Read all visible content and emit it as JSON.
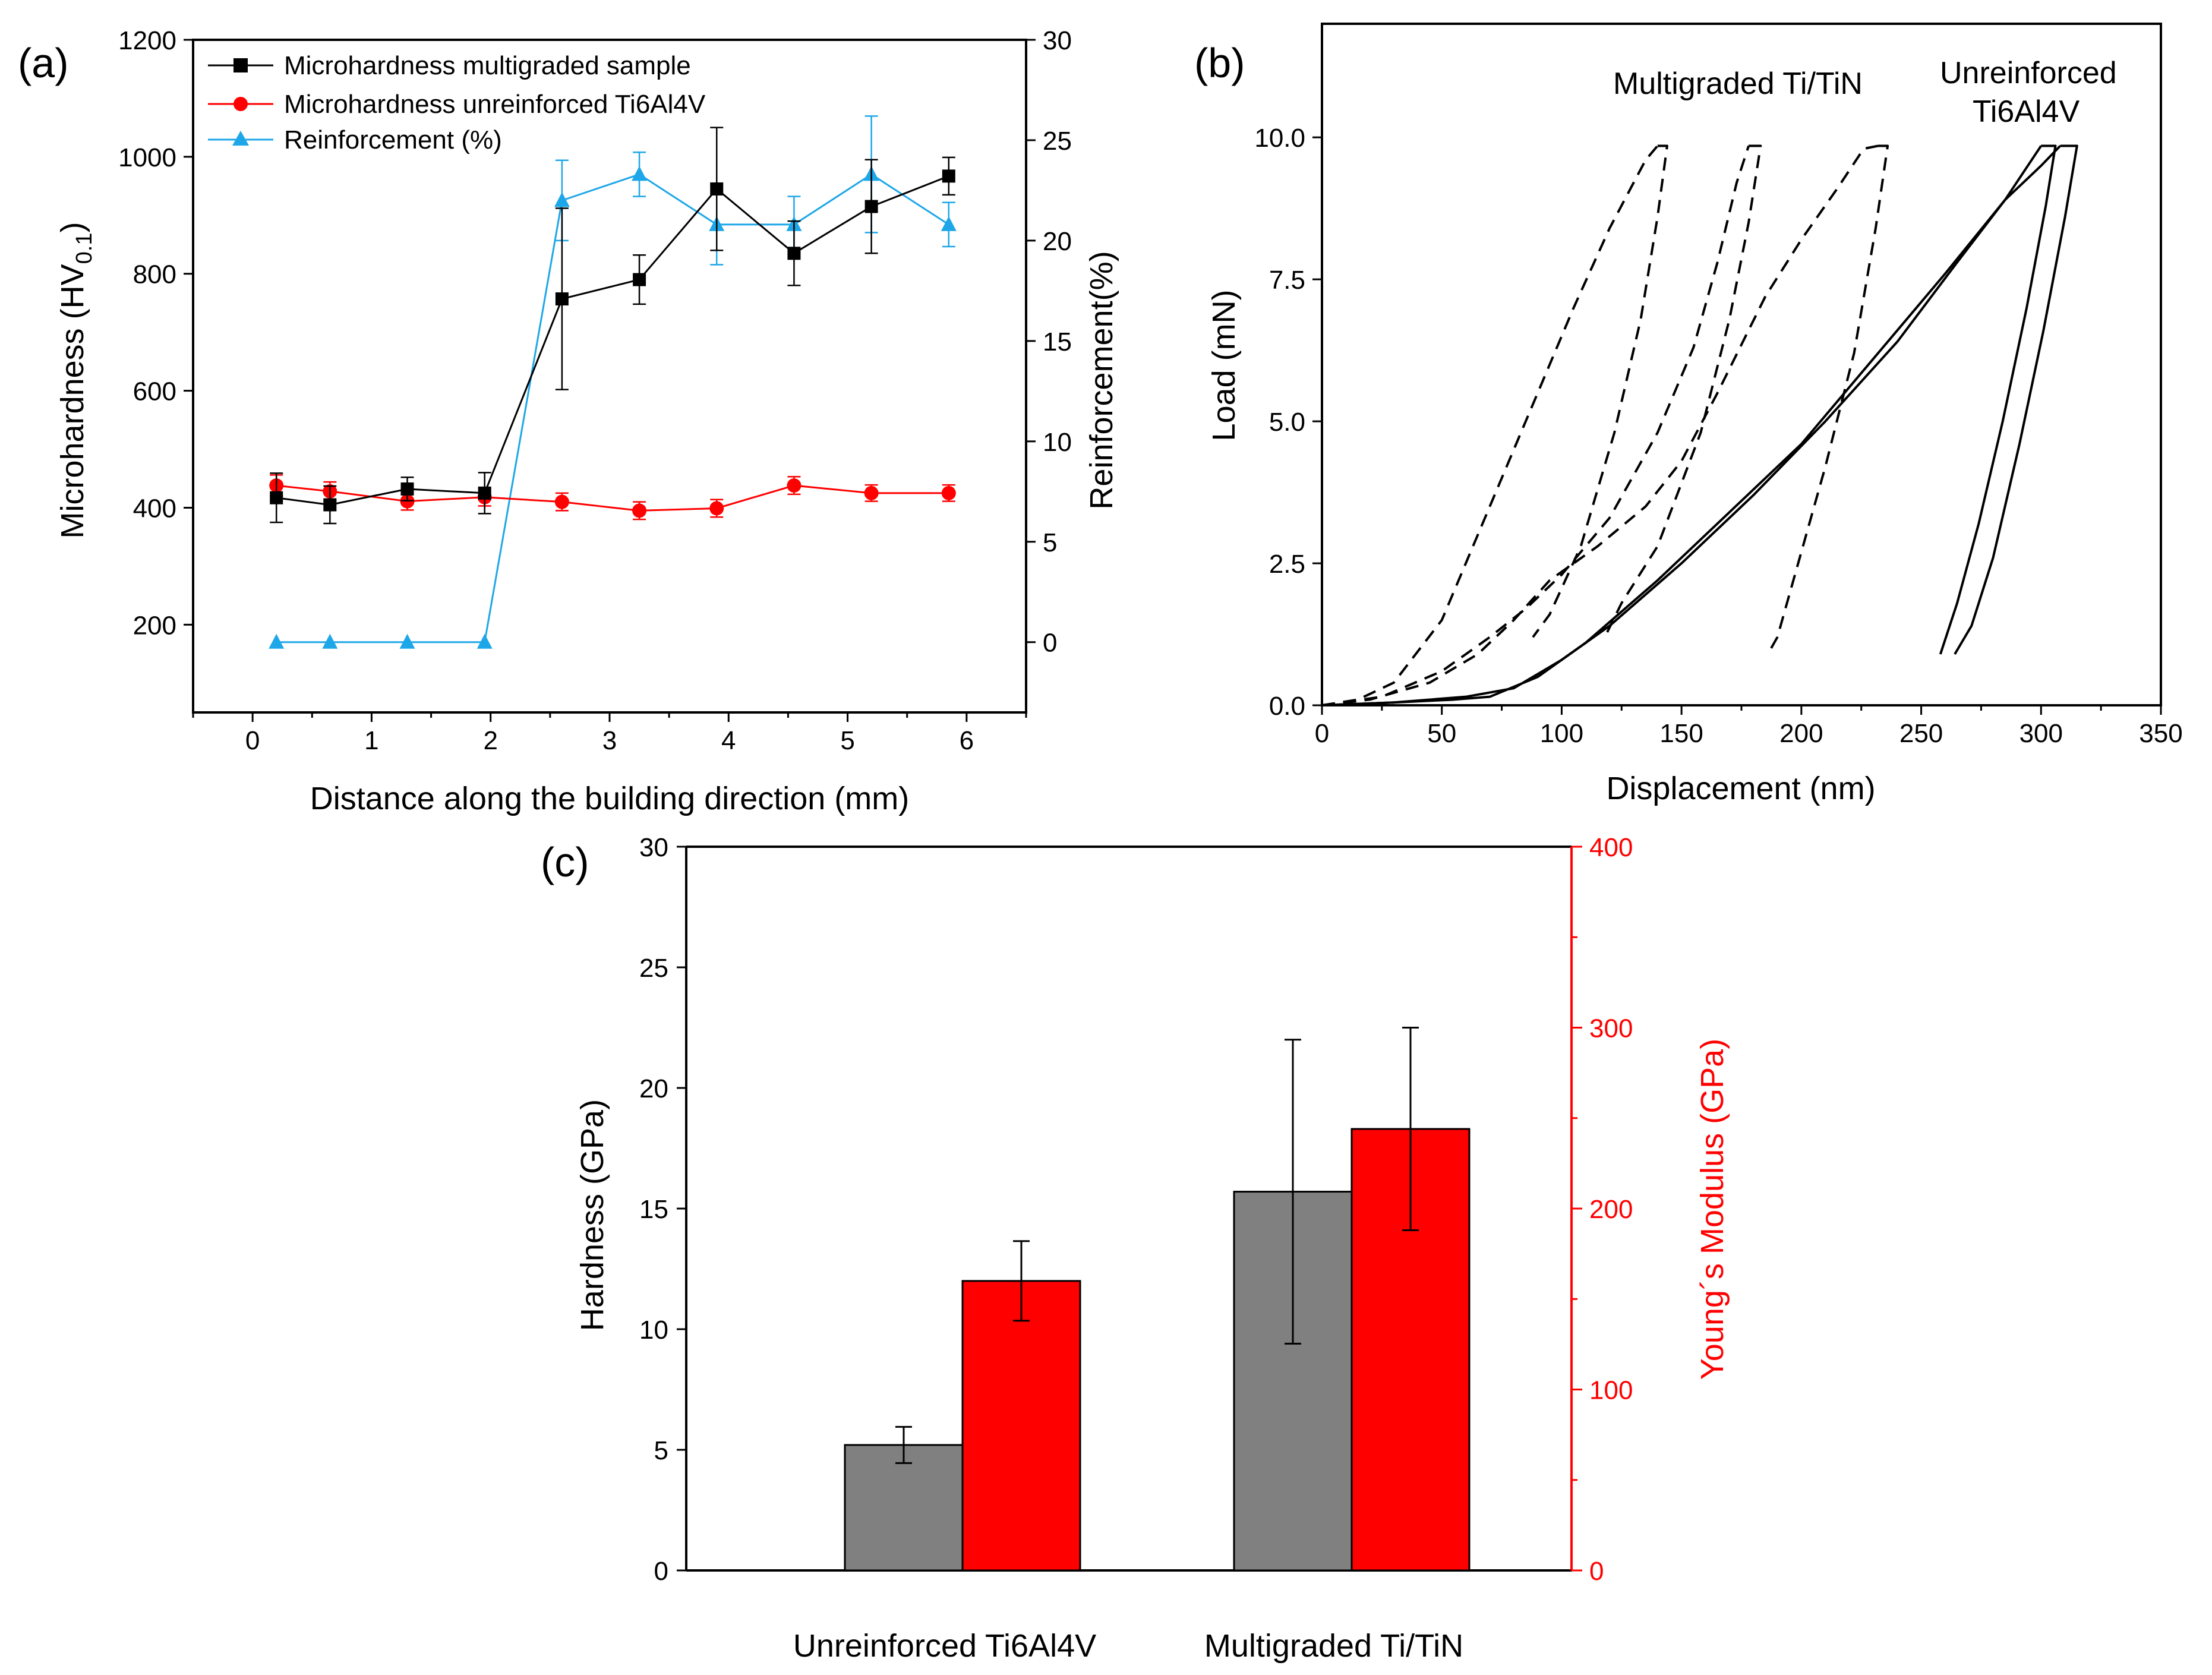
{
  "chart_data": [
    {
      "panel": "(a)",
      "type": "line",
      "xlabel": "Distance along the building direction (mm)",
      "ylabel": "Microhardness (HV0.1)",
      "ylabel_main": "Microhardness (HV",
      "ylabel_sub": "0.1",
      "ylabel_close": ")",
      "y2label": "Reinforcement(%)",
      "xlim": [
        -0.5,
        6.5
      ],
      "ylim": [
        50,
        1200
      ],
      "y2lim": [
        -3.5,
        30
      ],
      "xticks": [
        0,
        1,
        2,
        3,
        4,
        5,
        6
      ],
      "yticks": [
        200,
        400,
        600,
        800,
        1000,
        1200
      ],
      "y2ticks": [
        0,
        5,
        10,
        15,
        20,
        25,
        30
      ],
      "series": [
        {
          "name": "Microhardness multigraded sample",
          "color": "#000000",
          "marker": "square",
          "axis": "left",
          "x": [
            0.2,
            0.65,
            1.3,
            1.95,
            2.6,
            3.25,
            3.9,
            4.55,
            5.2,
            5.85
          ],
          "values": [
            417,
            405,
            432,
            425,
            757,
            790,
            945,
            835,
            915,
            967
          ],
          "errors": [
            42,
            32,
            20,
            35,
            155,
            42,
            105,
            55,
            80,
            32
          ]
        },
        {
          "name": "Microhardness unreinforced Ti6Al4V",
          "color": "#ff0000",
          "marker": "circle",
          "axis": "left",
          "x": [
            0.2,
            0.65,
            1.3,
            1.95,
            2.6,
            3.25,
            3.9,
            4.55,
            5.2,
            5.85
          ],
          "values": [
            438,
            428,
            411,
            418,
            410,
            395,
            399,
            438,
            425,
            425
          ],
          "errors": [
            18,
            16,
            15,
            15,
            15,
            15,
            15,
            15,
            14,
            14
          ]
        },
        {
          "name": "Reinforcement (%)",
          "color": "#1ea7e8",
          "marker": "triangle",
          "axis": "right",
          "x": [
            0.2,
            0.65,
            1.3,
            1.95,
            2.6,
            3.25,
            3.9,
            4.55,
            5.2,
            5.85
          ],
          "values": [
            0,
            0,
            0,
            0,
            22,
            23.3,
            20.8,
            20.8,
            23.3,
            20.8
          ],
          "errors": [
            0,
            0,
            0,
            0,
            2,
            1.1,
            2,
            1.4,
            2.9,
            1.1
          ]
        }
      ]
    },
    {
      "panel": "(b)",
      "type": "line",
      "xlabel": "Displacement (nm)",
      "ylabel": "Load (mN)",
      "xlim": [
        0,
        350
      ],
      "ylim": [
        0,
        12
      ],
      "xticks": [
        0,
        50,
        100,
        150,
        200,
        250,
        300,
        350
      ],
      "yticks": [
        0.0,
        2.5,
        5.0,
        7.5,
        10.0
      ],
      "ytick_labels": [
        "0.0",
        "2.5",
        "5.0",
        "7.5",
        "10.0"
      ],
      "annotations": [
        "Multigraded Ti/TiN",
        "Unreinforced",
        "Ti6Al4V"
      ],
      "series": [
        {
          "name": "Multigraded Ti/TiN curve 1",
          "style": "dashed",
          "loading": [
            [
              0,
              0
            ],
            [
              15,
              0.1
            ],
            [
              30,
              0.4
            ],
            [
              50,
              1.5
            ],
            [
              70,
              3.5
            ],
            [
              90,
              5.5
            ],
            [
              105,
              7
            ],
            [
              120,
              8.4
            ],
            [
              135,
              9.6
            ],
            [
              140,
              9.85
            ]
          ],
          "unloading": [
            [
              140,
              9.85
            ],
            [
              144,
              9.85
            ],
            [
              140,
              8.6
            ],
            [
              133,
              6.8
            ],
            [
              122,
              4.8
            ],
            [
              108,
              2.8
            ],
            [
              95,
              1.6
            ],
            [
              88,
              1.2
            ]
          ]
        },
        {
          "name": "Multigraded Ti/TiN curve 2",
          "style": "dashed",
          "loading": [
            [
              0,
              0
            ],
            [
              25,
              0.15
            ],
            [
              50,
              0.6
            ],
            [
              70,
              1.2
            ],
            [
              85,
              1.7
            ],
            [
              100,
              2.3
            ],
            [
              120,
              3.3
            ],
            [
              140,
              4.8
            ],
            [
              155,
              6.3
            ],
            [
              165,
              7.8
            ],
            [
              173,
              9.2
            ],
            [
              178,
              9.85
            ]
          ],
          "unloading": [
            [
              178,
              9.85
            ],
            [
              183,
              9.85
            ],
            [
              178,
              8.5
            ],
            [
              170,
              6.8
            ],
            [
              158,
              4.8
            ],
            [
              140,
              2.8
            ],
            [
              125,
              1.8
            ],
            [
              118,
              1.2
            ]
          ]
        },
        {
          "name": "Multigraded Ti/TiN curve 3",
          "style": "dashed",
          "loading": [
            [
              0,
              0
            ],
            [
              20,
              0.1
            ],
            [
              45,
              0.4
            ],
            [
              65,
              0.9
            ],
            [
              80,
              1.5
            ],
            [
              95,
              2.2
            ],
            [
              115,
              2.8
            ],
            [
              135,
              3.5
            ],
            [
              150,
              4.3
            ],
            [
              165,
              5.5
            ],
            [
              185,
              7.2
            ],
            [
              200,
              8.2
            ],
            [
              215,
              9.1
            ],
            [
              226,
              9.8
            ],
            [
              232,
              9.85
            ]
          ],
          "unloading": [
            [
              232,
              9.85
            ],
            [
              236,
              9.85
            ],
            [
              231,
              8.4
            ],
            [
              222,
              6.2
            ],
            [
              210,
              4.2
            ],
            [
              198,
              2.4
            ],
            [
              190,
              1.2
            ],
            [
              186,
              0.9
            ]
          ]
        },
        {
          "name": "Unreinforced Ti6Al4V curve 1",
          "style": "solid",
          "loading": [
            [
              0,
              0
            ],
            [
              30,
              0.05
            ],
            [
              60,
              0.15
            ],
            [
              80,
              0.3
            ],
            [
              100,
              0.8
            ],
            [
              120,
              1.4
            ],
            [
              150,
              2.5
            ],
            [
              180,
              3.7
            ],
            [
              210,
              5.0
            ],
            [
              240,
              6.4
            ],
            [
              265,
              7.8
            ],
            [
              285,
              8.9
            ],
            [
              300,
              9.85
            ]
          ],
          "unloading": [
            [
              300,
              9.85
            ],
            [
              306,
              9.85
            ],
            [
              302,
              8.8
            ],
            [
              294,
              7.0
            ],
            [
              284,
              5.0
            ],
            [
              274,
              3.2
            ],
            [
              265,
              1.8
            ],
            [
              258,
              0.9
            ]
          ]
        },
        {
          "name": "Unreinforced Ti6Al4V curve 2",
          "style": "solid",
          "loading": [
            [
              0,
              0
            ],
            [
              30,
              0.05
            ],
            [
              55,
              0.1
            ],
            [
              70,
              0.15
            ],
            [
              90,
              0.5
            ],
            [
              110,
              1.1
            ],
            [
              140,
              2.2
            ],
            [
              170,
              3.4
            ],
            [
              200,
              4.6
            ],
            [
              230,
              6.1
            ],
            [
              260,
              7.6
            ],
            [
              285,
              8.9
            ],
            [
              300,
              9.5
            ],
            [
              308,
              9.85
            ]
          ],
          "unloading": [
            [
              308,
              9.85
            ],
            [
              315,
              9.85
            ],
            [
              310,
              8.6
            ],
            [
              301,
              6.6
            ],
            [
              291,
              4.6
            ],
            [
              280,
              2.6
            ],
            [
              271,
              1.4
            ],
            [
              264,
              0.9
            ]
          ]
        }
      ]
    },
    {
      "panel": "(c)",
      "type": "bar",
      "categories": [
        "Unreinforced Ti6Al4V",
        "Multigraded Ti/TiN"
      ],
      "ylabel": "Hardness (GPa)",
      "y2label": "Young´s Modulus (GPa)",
      "ylim": [
        0,
        30
      ],
      "y2lim": [
        0,
        400
      ],
      "yticks": [
        0,
        5,
        10,
        15,
        20,
        25,
        30
      ],
      "y2ticks": [
        0,
        100,
        200,
        300,
        400
      ],
      "series": [
        {
          "name": "Hardness",
          "axis": "left",
          "color": "#808080",
          "values": [
            5.2,
            15.7
          ],
          "errors": [
            0.75,
            6.3
          ]
        },
        {
          "name": "Young´s Modulus",
          "axis": "right",
          "color": "#ff0000",
          "values": [
            160,
            244
          ],
          "errors": [
            22,
            56
          ]
        }
      ]
    }
  ]
}
